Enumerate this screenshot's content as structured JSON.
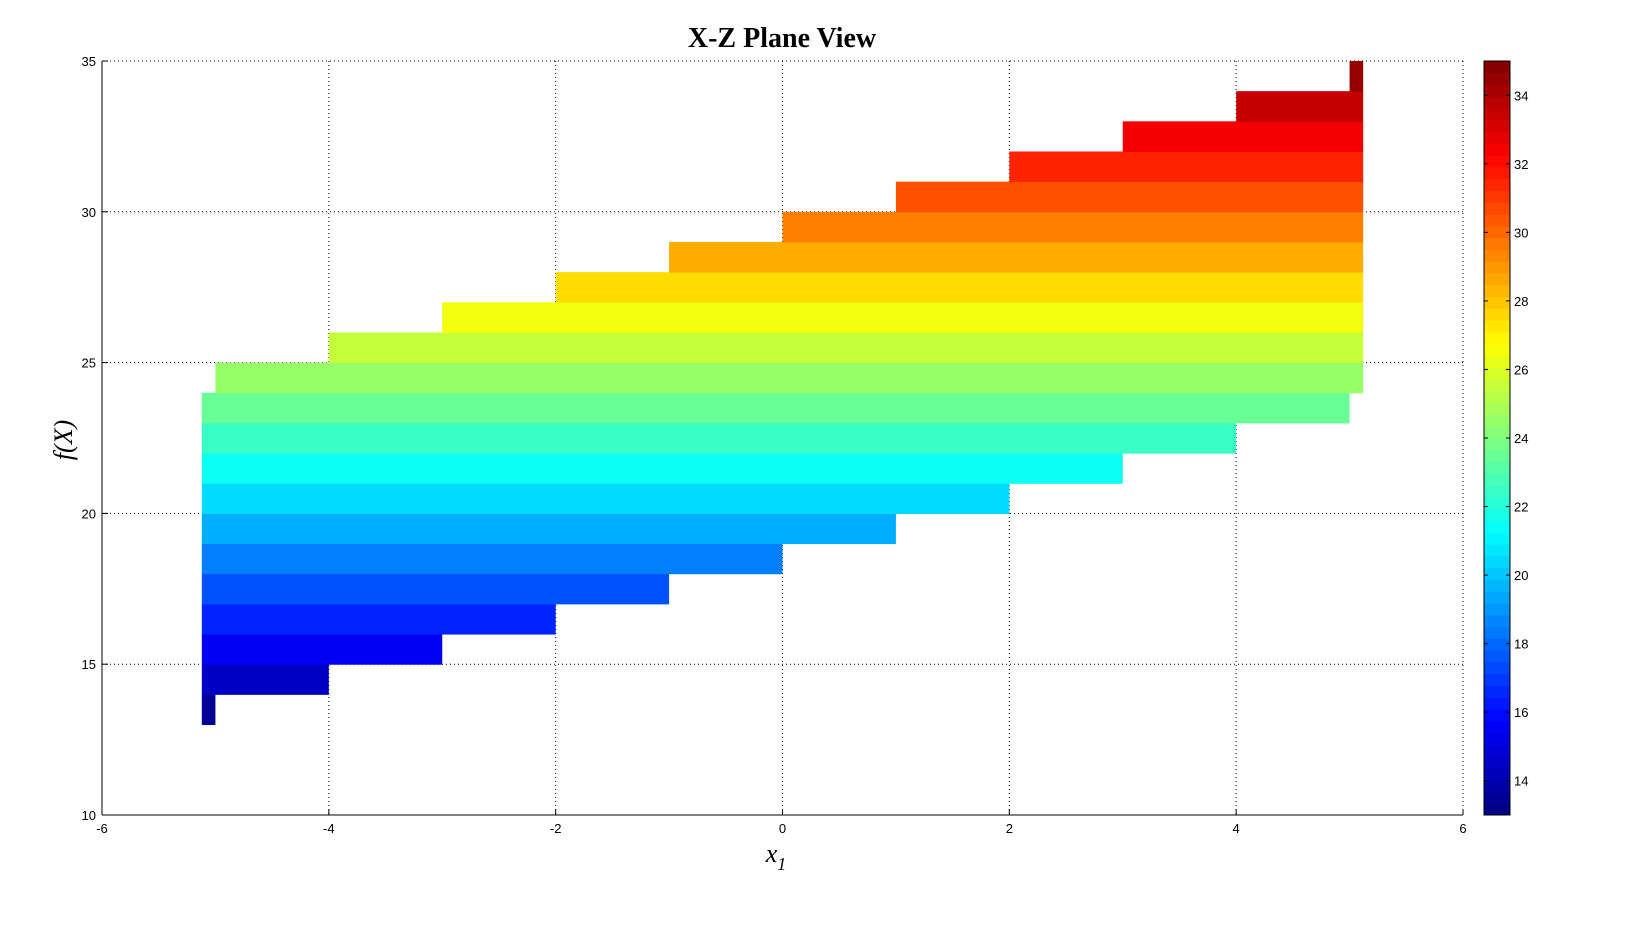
{
  "chart_data": {
    "type": "heatmap",
    "title": "X-Z Plane View",
    "xlabel": "x",
    "xlabel_subscript": "1",
    "ylabel": "f(X)",
    "xlim": [
      -6,
      6
    ],
    "ylim": [
      10,
      35
    ],
    "xticks": [
      "-6",
      "-4",
      "-2",
      "0",
      "2",
      "4",
      "6"
    ],
    "yticks": [
      "10",
      "15",
      "20",
      "25",
      "30",
      "35"
    ],
    "grid": true,
    "colormap": "jet",
    "clim": [
      13,
      35
    ],
    "colorbar": {
      "location": "right",
      "ticks": [
        "14",
        "16",
        "18",
        "20",
        "22",
        "24",
        "26",
        "28",
        "30",
        "32",
        "34"
      ]
    },
    "bands": [
      {
        "z": 13,
        "x": [
          -5.12,
          -5.0
        ]
      },
      {
        "z": 14,
        "x": [
          -5.12,
          -4
        ]
      },
      {
        "z": 15,
        "x": [
          -5.12,
          -3
        ]
      },
      {
        "z": 16,
        "x": [
          -5.12,
          -2
        ]
      },
      {
        "z": 17,
        "x": [
          -5.12,
          -1
        ]
      },
      {
        "z": 18,
        "x": [
          -5.12,
          0
        ]
      },
      {
        "z": 19,
        "x": [
          -5.12,
          1
        ]
      },
      {
        "z": 20,
        "x": [
          -5.12,
          2
        ]
      },
      {
        "z": 21,
        "x": [
          -5.12,
          3
        ]
      },
      {
        "z": 22,
        "x": [
          -5.12,
          4
        ]
      },
      {
        "z": 23,
        "x": [
          -5.12,
          5
        ]
      },
      {
        "z": 24,
        "x": [
          -5.0,
          5.12
        ]
      },
      {
        "z": 25,
        "x": [
          -4,
          5.12
        ]
      },
      {
        "z": 26,
        "x": [
          -3,
          5.12
        ]
      },
      {
        "z": 27,
        "x": [
          -2,
          5.12
        ]
      },
      {
        "z": 28,
        "x": [
          -1,
          5.12
        ]
      },
      {
        "z": 29,
        "x": [
          0,
          5.12
        ]
      },
      {
        "z": 30,
        "x": [
          1,
          5.12
        ]
      },
      {
        "z": 31,
        "x": [
          2,
          5.12
        ]
      },
      {
        "z": 32,
        "x": [
          3,
          5.12
        ]
      },
      {
        "z": 33,
        "x": [
          4,
          5.12
        ]
      },
      {
        "z": 34,
        "x": [
          5.0,
          5.12
        ]
      }
    ]
  }
}
